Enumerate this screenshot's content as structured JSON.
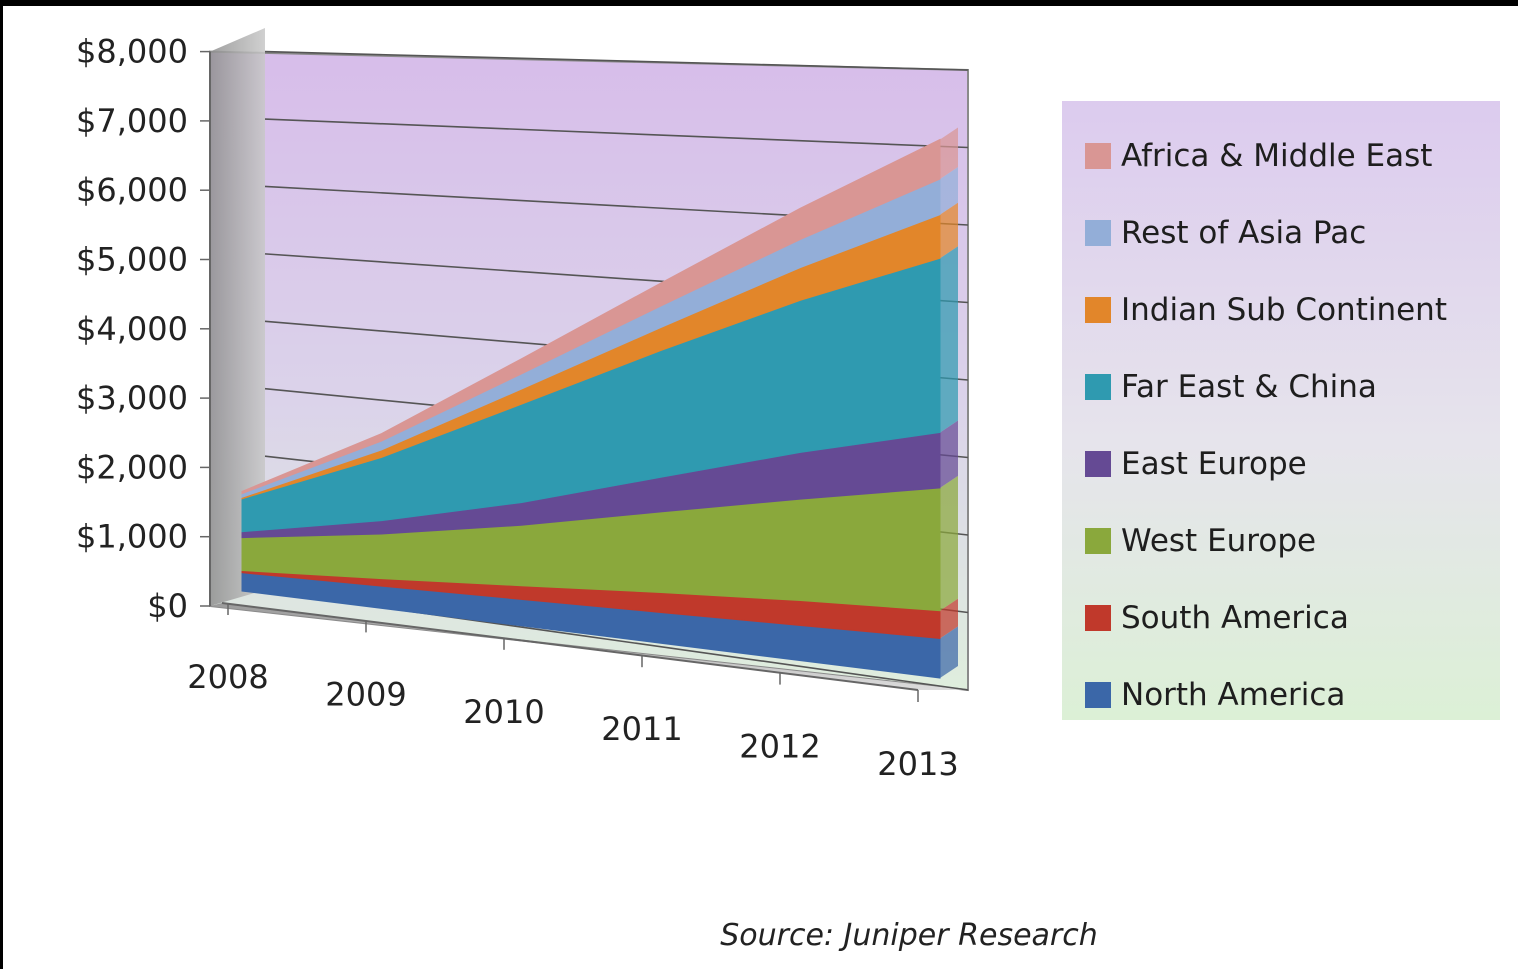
{
  "chart_data": {
    "type": "area",
    "stacked": true,
    "three_d": true,
    "categories": [
      "2008",
      "2009",
      "2010",
      "2011",
      "2012",
      "2013"
    ],
    "y_tick_labels": [
      "$0",
      "$1,000",
      "$2,000",
      "$3,000",
      "$4,000",
      "$5,000",
      "$6,000",
      "$7,000",
      "$8,000"
    ],
    "ylim": [
      0,
      8000
    ],
    "grid": true,
    "legend_position": "right",
    "series": [
      {
        "name": "North America",
        "color": "#3b67a8",
        "values": [
          250,
          300,
          350,
          400,
          450,
          500
        ]
      },
      {
        "name": "South America",
        "color": "#c0392b",
        "values": [
          30,
          100,
          180,
          260,
          320,
          350
        ]
      },
      {
        "name": "West Europe",
        "color": "#8aa83c",
        "values": [
          450,
          600,
          800,
          1050,
          1300,
          1550
        ]
      },
      {
        "name": "East Europe",
        "color": "#654a94",
        "values": [
          80,
          180,
          300,
          450,
          600,
          700
        ]
      },
      {
        "name": "Far East & China",
        "color": "#2f9ab0",
        "values": [
          450,
          850,
          1300,
          1650,
          1950,
          2200
        ]
      },
      {
        "name": "Indian Sub Continent",
        "color": "#e2862a",
        "values": [
          20,
          100,
          200,
          300,
          420,
          550
        ]
      },
      {
        "name": "Rest of Asia Pac",
        "color": "#93aed8",
        "values": [
          50,
          120,
          200,
          280,
          360,
          450
        ]
      },
      {
        "name": "Africa & Middle East",
        "color": "#d99694",
        "values": [
          30,
          100,
          200,
          300,
          400,
          500
        ]
      }
    ],
    "source": "Source: Juniper Research"
  }
}
